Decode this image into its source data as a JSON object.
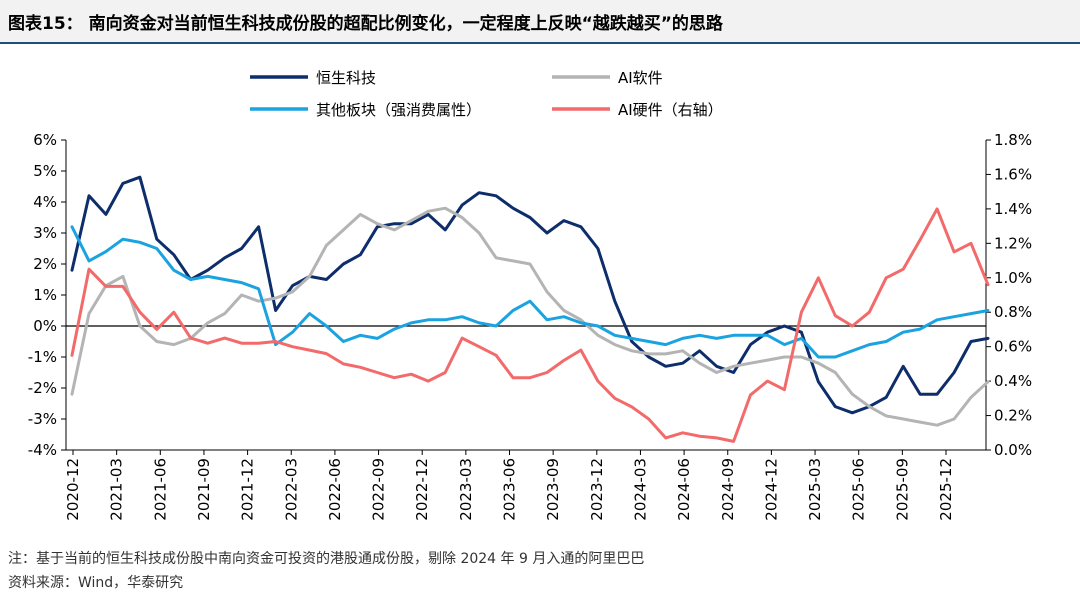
{
  "title": "图表15：  南向资金对当前恒生科技成份股的超配比例变化，一定程度上反映“越跌越买”的思路",
  "footnote": "注：基于当前的恒生科技成份股中南向资金可投资的港股通成份股，剔除 2024 年 9 月入通的阿里巴巴",
  "source": "资料来源：Wind，华泰研究",
  "chart_data": {
    "type": "line",
    "x_ticks": [
      "2020-12",
      "2021-03",
      "2021-06",
      "2021-09",
      "2021-12",
      "2022-03",
      "2022-06",
      "2022-09",
      "2022-12",
      "2023-03",
      "2023-06",
      "2023-09",
      "2023-12",
      "2024-03",
      "2024-06",
      "2024-09",
      "2024-12",
      "2025-03",
      "2025-06",
      "2025-09",
      "2025-12"
    ],
    "y_left_ticks": [
      "6%",
      "5%",
      "4%",
      "3%",
      "2%",
      "1%",
      "0%",
      "-1%",
      "-2%",
      "-3%",
      "-4%"
    ],
    "y_right_ticks": [
      "1.8%",
      "1.6%",
      "1.4%",
      "1.2%",
      "1.0%",
      "0.8%",
      "0.6%",
      "0.4%",
      "0.2%",
      "0.0%"
    ],
    "ylim_left": [
      -4,
      6
    ],
    "ylim_right": [
      0,
      1.8
    ],
    "series": [
      {
        "name": "恒生科技",
        "axis": "left",
        "color": "#0d2d6b",
        "values": [
          1.8,
          4.2,
          3.6,
          4.6,
          4.8,
          2.8,
          2.3,
          1.5,
          1.8,
          2.2,
          2.5,
          3.2,
          0.5,
          1.3,
          1.6,
          1.5,
          2.0,
          2.3,
          3.2,
          3.3,
          3.3,
          3.6,
          3.1,
          3.9,
          4.3,
          4.2,
          3.8,
          3.5,
          3.0,
          3.4,
          3.2,
          2.5,
          0.8,
          -0.5,
          -1.0,
          -1.3,
          -1.2,
          -0.8,
          -1.3,
          -1.5,
          -0.6,
          -0.2,
          0.0,
          -0.2,
          -1.8,
          -2.6,
          -2.8,
          -2.6,
          -2.3,
          -1.3,
          -2.2,
          -2.2,
          -1.5,
          -0.5,
          -0.4
        ]
      },
      {
        "name": "AI软件",
        "axis": "left",
        "color": "#b4b4b4",
        "values": [
          -2.2,
          0.4,
          1.3,
          1.6,
          0.0,
          -0.5,
          -0.6,
          -0.4,
          0.1,
          0.4,
          1.0,
          0.8,
          0.9,
          1.1,
          1.6,
          2.6,
          3.1,
          3.6,
          3.3,
          3.1,
          3.4,
          3.7,
          3.8,
          3.5,
          3.0,
          2.2,
          2.1,
          2.0,
          1.1,
          0.5,
          0.2,
          -0.3,
          -0.6,
          -0.8,
          -0.9,
          -0.9,
          -0.8,
          -1.2,
          -1.5,
          -1.3,
          -1.2,
          -1.1,
          -1.0,
          -1.0,
          -1.2,
          -1.5,
          -2.2,
          -2.6,
          -2.9,
          -3.0,
          -3.1,
          -3.2,
          -3.0,
          -2.3,
          -1.8
        ]
      },
      {
        "name": "其他板块（强消费属性）",
        "axis": "left",
        "color": "#1aa3e0",
        "values": [
          3.2,
          2.1,
          2.4,
          2.8,
          2.7,
          2.5,
          1.8,
          1.5,
          1.6,
          1.5,
          1.4,
          1.2,
          -0.6,
          -0.2,
          0.4,
          0.0,
          -0.5,
          -0.3,
          -0.4,
          -0.1,
          0.1,
          0.2,
          0.2,
          0.3,
          0.1,
          0.0,
          0.5,
          0.8,
          0.2,
          0.3,
          0.1,
          0.0,
          -0.3,
          -0.4,
          -0.5,
          -0.6,
          -0.4,
          -0.3,
          -0.4,
          -0.3,
          -0.3,
          -0.3,
          -0.6,
          -0.4,
          -1.0,
          -1.0,
          -0.8,
          -0.6,
          -0.5,
          -0.2,
          -0.1,
          0.2,
          0.3,
          0.4,
          0.5
        ]
      },
      {
        "name": "AI硬件（右轴）",
        "axis": "right",
        "color": "#f26a6a",
        "values": [
          0.55,
          1.05,
          0.95,
          0.95,
          0.8,
          0.7,
          0.8,
          0.65,
          0.62,
          0.65,
          0.62,
          0.62,
          0.63,
          0.6,
          0.58,
          0.56,
          0.5,
          0.48,
          0.45,
          0.42,
          0.44,
          0.4,
          0.45,
          0.65,
          0.6,
          0.55,
          0.42,
          0.42,
          0.45,
          0.52,
          0.58,
          0.4,
          0.3,
          0.25,
          0.18,
          0.07,
          0.1,
          0.08,
          0.07,
          0.05,
          0.32,
          0.4,
          0.35,
          0.8,
          1.0,
          0.78,
          0.72,
          0.8,
          1.0,
          1.05,
          1.22,
          1.4,
          1.15,
          1.2,
          0.96
        ]
      }
    ]
  }
}
